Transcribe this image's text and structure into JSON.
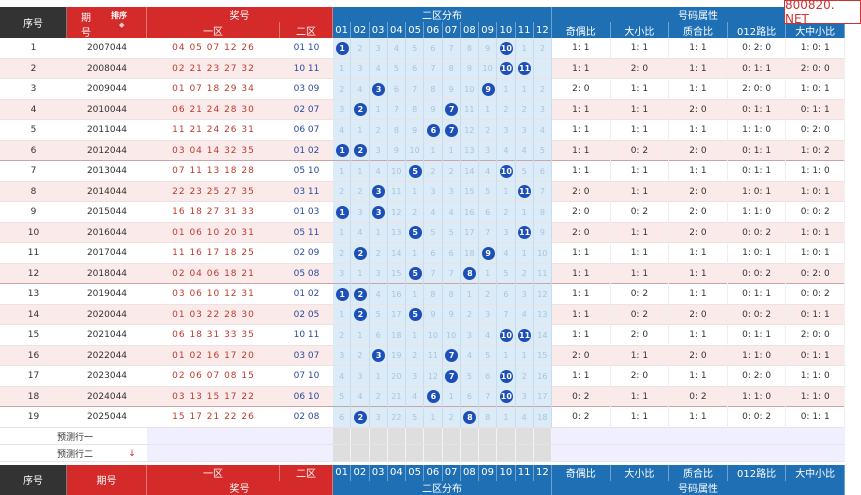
{
  "header": {
    "seq": "序号",
    "period_line1": "期",
    "period_line2": "号",
    "sort_label": "排序",
    "sort_icon": "◆",
    "prize_group": "奖号",
    "zone1": "一区",
    "zone2": "二区",
    "dist_group": "二区分布",
    "attr_group": "号码属性",
    "attrs": [
      "奇偶比",
      "大小比",
      "质合比",
      "012路比",
      "大中小比"
    ],
    "dist_cols": [
      "01",
      "02",
      "03",
      "04",
      "05",
      "06",
      "07",
      "08",
      "09",
      "10",
      "11",
      "12"
    ]
  },
  "rows": [
    {
      "seq": "1",
      "period": "2007044",
      "z1": "04 05 07 12 26",
      "z2": "01 10",
      "balls": [
        1,
        10
      ],
      "dist": [
        "",
        "2",
        "3",
        "4",
        "5",
        "6",
        "7",
        "8",
        "9",
        "",
        "1",
        "2"
      ],
      "attrs": [
        "1: 1",
        "1: 1",
        "1: 1",
        "0: 2: 0",
        "1: 0: 1"
      ]
    },
    {
      "seq": "2",
      "period": "2008044",
      "z1": "02 21 23 27 32",
      "z2": "10 11",
      "balls": [
        10,
        11
      ],
      "dist": [
        "1",
        "3",
        "4",
        "5",
        "6",
        "7",
        "8",
        "9",
        "10",
        "",
        "",
        ""
      ],
      "attrs": [
        "1: 1",
        "2: 0",
        "1: 1",
        "0: 1: 1",
        "2: 0: 0"
      ]
    },
    {
      "seq": "3",
      "period": "2009044",
      "z1": "01 07 18 29 34",
      "z2": "03 09",
      "balls": [
        3,
        9
      ],
      "dist": [
        "2",
        "4",
        "",
        "6",
        "7",
        "8",
        "9",
        "10",
        "",
        "1",
        "1",
        "2"
      ],
      "attrs": [
        "2: 0",
        "1: 1",
        "1: 1",
        "2: 0: 0",
        "1: 0: 1"
      ]
    },
    {
      "seq": "4",
      "period": "2010044",
      "z1": "06 21 24 28 30",
      "z2": "02 07",
      "balls": [
        2,
        7
      ],
      "dist": [
        "3",
        "",
        "1",
        "7",
        "8",
        "9",
        "",
        "11",
        "1",
        "2",
        "2",
        "3"
      ],
      "attrs": [
        "1: 1",
        "1: 1",
        "2: 0",
        "0: 1: 1",
        "0: 1: 1"
      ]
    },
    {
      "seq": "5",
      "period": "2011044",
      "z1": "11 21 24 26 31",
      "z2": "06 07",
      "balls": [
        6,
        7
      ],
      "dist": [
        "4",
        "1",
        "2",
        "8",
        "9",
        "",
        "",
        "12",
        "2",
        "3",
        "3",
        "4"
      ],
      "attrs": [
        "1: 1",
        "1: 1",
        "1: 1",
        "1: 1: 0",
        "0: 2: 0"
      ]
    },
    {
      "seq": "6",
      "period": "2012044",
      "z1": "03 04 14 32 35",
      "z2": "01 02",
      "balls": [
        1,
        2
      ],
      "dist": [
        "",
        "",
        "3",
        "9",
        "10",
        "1",
        "1",
        "13",
        "3",
        "4",
        "4",
        "5"
      ],
      "attrs": [
        "1: 1",
        "0: 2",
        "2: 0",
        "0: 1: 1",
        "1: 0: 2"
      ]
    },
    {
      "seq": "7",
      "period": "2013044",
      "z1": "07 11 13 18 28",
      "z2": "05 10",
      "balls": [
        5,
        10
      ],
      "dist": [
        "1",
        "1",
        "4",
        "10",
        "",
        "2",
        "2",
        "14",
        "4",
        "",
        "5",
        "6"
      ],
      "attrs": [
        "1: 1",
        "1: 1",
        "1: 1",
        "0: 1: 1",
        "1: 1: 0"
      ]
    },
    {
      "seq": "8",
      "period": "2014044",
      "z1": "22 23 25 27 35",
      "z2": "03 11",
      "balls": [
        3,
        11
      ],
      "dist": [
        "2",
        "2",
        "",
        "11",
        "1",
        "3",
        "3",
        "15",
        "5",
        "1",
        "",
        "7"
      ],
      "attrs": [
        "2: 0",
        "1: 1",
        "2: 0",
        "1: 0: 1",
        "1: 0: 1"
      ]
    },
    {
      "seq": "9",
      "period": "2015044",
      "z1": "16 18 27 31 33",
      "z2": "01 03",
      "balls": [
        1,
        3
      ],
      "dist": [
        "",
        "3",
        "",
        "12",
        "2",
        "4",
        "4",
        "16",
        "6",
        "2",
        "1",
        "8"
      ],
      "attrs": [
        "2: 0",
        "0: 2",
        "2: 0",
        "1: 1: 0",
        "0: 0: 2"
      ]
    },
    {
      "seq": "10",
      "period": "2016044",
      "z1": "01 06 10 20 31",
      "z2": "05 11",
      "balls": [
        5,
        11
      ],
      "dist": [
        "1",
        "4",
        "1",
        "13",
        "",
        "5",
        "5",
        "17",
        "7",
        "3",
        "",
        "9"
      ],
      "attrs": [
        "2: 0",
        "1: 1",
        "2: 0",
        "0: 0: 2",
        "1: 0: 1"
      ]
    },
    {
      "seq": "11",
      "period": "2017044",
      "z1": "11 16 17 18 25",
      "z2": "02 09",
      "balls": [
        2,
        9
      ],
      "dist": [
        "2",
        "",
        "2",
        "14",
        "1",
        "6",
        "6",
        "18",
        "",
        "4",
        "1",
        "10"
      ],
      "attrs": [
        "1: 1",
        "1: 1",
        "1: 1",
        "1: 0: 1",
        "1: 0: 1"
      ]
    },
    {
      "seq": "12",
      "period": "2018044",
      "z1": "02 04 06 18 21",
      "z2": "05 08",
      "balls": [
        5,
        8
      ],
      "dist": [
        "3",
        "1",
        "3",
        "15",
        "",
        "7",
        "7",
        "",
        "1",
        "5",
        "2",
        "11"
      ],
      "attrs": [
        "1: 1",
        "1: 1",
        "1: 1",
        "0: 0: 2",
        "0: 2: 0"
      ]
    },
    {
      "seq": "13",
      "period": "2019044",
      "z1": "03 06 10 12 31",
      "z2": "01 02",
      "balls": [
        1,
        2
      ],
      "dist": [
        "",
        "",
        "4",
        "16",
        "1",
        "8",
        "8",
        "1",
        "2",
        "6",
        "3",
        "12"
      ],
      "attrs": [
        "1: 1",
        "0: 2",
        "1: 1",
        "0: 1: 1",
        "0: 0: 2"
      ]
    },
    {
      "seq": "14",
      "period": "2020044",
      "z1": "01 03 22 28 30",
      "z2": "02 05",
      "balls": [
        2,
        5
      ],
      "dist": [
        "1",
        "",
        "5",
        "17",
        "",
        "9",
        "9",
        "2",
        "3",
        "7",
        "4",
        "13"
      ],
      "attrs": [
        "1: 1",
        "0: 2",
        "2: 0",
        "0: 0: 2",
        "0: 1: 1"
      ]
    },
    {
      "seq": "15",
      "period": "2021044",
      "z1": "06 18 31 33 35",
      "z2": "10 11",
      "balls": [
        10,
        11
      ],
      "dist": [
        "2",
        "1",
        "6",
        "18",
        "1",
        "10",
        "10",
        "3",
        "4",
        "",
        "",
        "14"
      ],
      "attrs": [
        "1: 1",
        "2: 0",
        "1: 1",
        "0: 1: 1",
        "2: 0: 0"
      ]
    },
    {
      "seq": "16",
      "period": "2022044",
      "z1": "01 02 16 17 20",
      "z2": "03 07",
      "balls": [
        3,
        7
      ],
      "dist": [
        "3",
        "2",
        "",
        "19",
        "2",
        "11",
        "",
        "4",
        "5",
        "1",
        "1",
        "15"
      ],
      "attrs": [
        "2: 0",
        "1: 1",
        "2: 0",
        "1: 1: 0",
        "0: 1: 1"
      ]
    },
    {
      "seq": "17",
      "period": "2023044",
      "z1": "02 06 07 08 15",
      "z2": "07 10",
      "balls": [
        7,
        10
      ],
      "dist": [
        "4",
        "3",
        "1",
        "20",
        "3",
        "12",
        "",
        "5",
        "6",
        "",
        "2",
        "16"
      ],
      "attrs": [
        "1: 1",
        "2: 0",
        "1: 1",
        "0: 2: 0",
        "1: 1: 0"
      ]
    },
    {
      "seq": "18",
      "period": "2024044",
      "z1": "03 13 15 17 22",
      "z2": "06 10",
      "balls": [
        6,
        10
      ],
      "dist": [
        "5",
        "4",
        "2",
        "21",
        "4",
        "",
        "1",
        "6",
        "7",
        "",
        "3",
        "17"
      ],
      "attrs": [
        "0: 2",
        "1: 1",
        "0: 2",
        "1: 1: 0",
        "1: 1: 0"
      ]
    },
    {
      "seq": "19",
      "period": "2025044",
      "z1": "15 17 21 22 26",
      "z2": "02 08",
      "balls": [
        2,
        8
      ],
      "dist": [
        "6",
        "",
        "3",
        "22",
        "5",
        "1",
        "2",
        "",
        "8",
        "1",
        "4",
        "18"
      ],
      "attrs": [
        "0: 2",
        "1: 1",
        "1: 1",
        "0: 0: 2",
        "0: 1: 1"
      ]
    }
  ],
  "predict": {
    "row1": "预测行一",
    "row2": "预测行二",
    "row2_icon": "↓"
  },
  "footer": {
    "seq": "序号",
    "period": "期号",
    "zone1": "一区",
    "zone2": "二区",
    "prize": "奖号",
    "dist": "二区分布",
    "attr": "号码属性",
    "attrs": [
      "奇偶比",
      "大小比",
      "质合比",
      "012路比",
      "大中小比"
    ]
  },
  "watermark": "800820. NET",
  "colors": {
    "dark_header": "#333333",
    "red_header": "#d42a2a",
    "blue_header": "#1f6fb5",
    "ball": "#1d4fb8",
    "row_pink": "#fbeaea",
    "dist_bg": "#dcebf8"
  }
}
